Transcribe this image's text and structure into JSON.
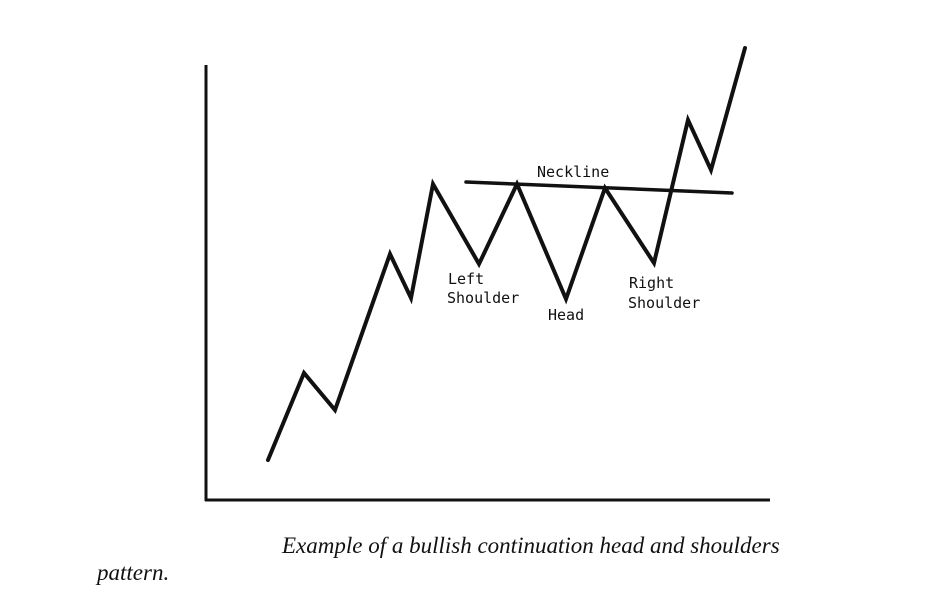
{
  "labels": {
    "neckline": "Neckline",
    "left_shoulder_line1": "Left",
    "left_shoulder_line2": "Shoulder",
    "head": "Head",
    "right_shoulder_line1": "Right",
    "right_shoulder_line2": "Shoulder"
  },
  "caption": {
    "line1": "Example of a bullish continuation head and shoulders",
    "line2": "pattern."
  }
}
